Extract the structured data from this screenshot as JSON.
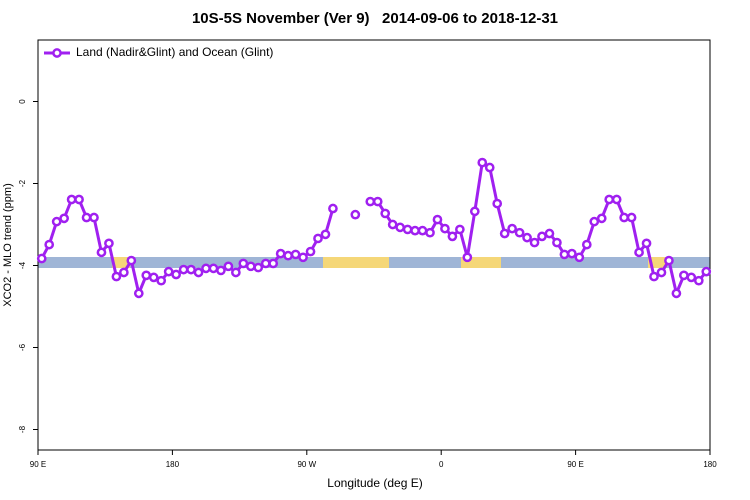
{
  "chart_data": {
    "type": "line",
    "title": "10S-5S November (Ver 9)   2014-09-06 to 2018-12-31",
    "x_label": "Longitude (deg E)",
    "y_label": "XCO2 - MLO trend (ppm)",
    "xlim": [
      -270,
      180
    ],
    "xticks": [
      {
        "value": -270,
        "label": "90 E"
      },
      {
        "value": -180,
        "label": "180"
      },
      {
        "value": -90,
        "label": "90 W"
      },
      0,
      {
        "value": 90,
        "label": "90 E"
      },
      180
    ],
    "ylim": [
      -8.5,
      1.5
    ],
    "yticks": [
      0,
      -2,
      -4,
      -6,
      -8
    ],
    "legend": "top-left",
    "x": [
      -267.5,
      -262.5,
      -257.5,
      -252.5,
      -247.5,
      -242.5,
      -237.5,
      -232.5,
      -227.5,
      -222.5,
      -217.5,
      -212.5,
      -207.5,
      -202.5,
      -197.5,
      -192.5,
      -187.5,
      -182.5,
      -177.5,
      -172.5,
      -167.5,
      -162.5,
      -157.5,
      -152.5,
      -147.5,
      -142.5,
      -137.5,
      -132.5,
      -127.5,
      -122.5,
      -117.5,
      -112.5,
      -107.5,
      -102.5,
      -97.5,
      -92.5,
      -87.5,
      -82.5,
      -77.5,
      -72.5,
      -67.5,
      -62.5,
      -57.5,
      -52.5,
      -47.5,
      -42.5,
      -37.5,
      -32.5,
      -27.5,
      -22.5,
      -17.5,
      -12.5,
      -7.5,
      -2.5,
      2.5,
      7.5,
      12.5,
      17.5,
      22.5,
      27.5,
      32.5,
      37.5,
      42.5,
      47.5,
      52.5,
      57.5,
      62.5,
      67.5,
      72.5,
      77.5,
      82.5,
      87.5,
      92.5,
      97.5,
      102.5,
      107.5,
      112.5,
      117.5,
      122.5,
      127.5,
      132.5,
      137.5,
      142.5,
      147.5,
      152.5,
      157.5,
      162.5,
      167.5,
      172.5,
      177.5
    ],
    "series": [
      {
        "name": "Land (Nadir&Glint) and Ocean (Glint)",
        "color": "#a020f0",
        "values": [
          -3.83,
          -3.49,
          -2.93,
          -2.85,
          -2.39,
          -2.39,
          -2.83,
          -2.83,
          -3.68,
          -3.46,
          -4.27,
          -4.17,
          -3.88,
          -4.68,
          -4.24,
          -4.29,
          -4.37,
          -4.15,
          -4.22,
          -4.1,
          -4.1,
          -4.17,
          -4.07,
          -4.07,
          -4.12,
          -4.02,
          -4.17,
          -3.95,
          -4.02,
          -4.05,
          -3.95,
          -3.95,
          -3.71,
          -3.76,
          -3.73,
          -3.8,
          -3.66,
          -3.34,
          -3.24,
          -2.61,
          null,
          null,
          -2.76,
          null,
          -2.44,
          -2.44,
          -2.73,
          -3.0,
          -3.07,
          -3.12,
          -3.15,
          -3.15,
          -3.2,
          -2.88,
          -3.1,
          -3.29,
          -3.12,
          -3.8,
          -2.68,
          -1.49,
          -1.61,
          -2.49,
          -3.22,
          -3.1,
          -3.2,
          -3.32,
          -3.44,
          -3.29,
          -3.22,
          -3.44,
          -3.73,
          -3.71,
          -3.8,
          -3.49,
          -2.93,
          -2.85,
          -2.39,
          -2.39,
          -2.83,
          -2.83,
          -3.68,
          -3.46,
          -4.27,
          -4.17,
          -3.88,
          -4.68,
          -4.24,
          -4.29,
          -4.37,
          -4.15
        ]
      }
    ]
  }
}
